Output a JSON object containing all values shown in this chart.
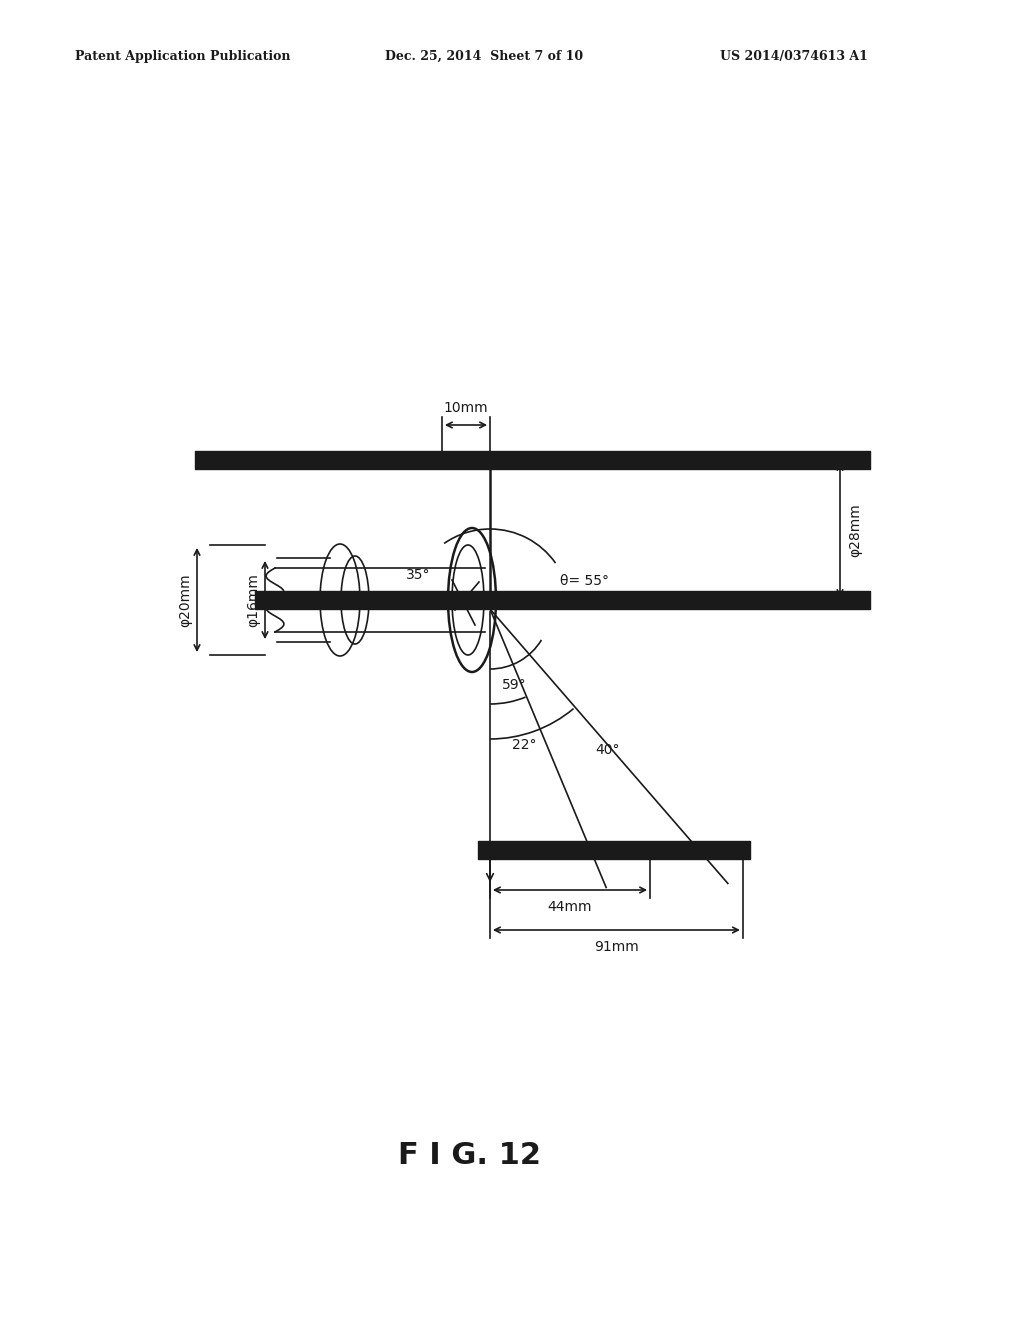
{
  "bg_color": "#ffffff",
  "line_color": "#1a1a1a",
  "header_left": "Patent Application Publication",
  "header_mid": "Dec. 25, 2014  Sheet 7 of 10",
  "header_right": "US 2014/0374613 A1",
  "fig_label": "F I G. 12",
  "label_10mm": "10mm",
  "label_16mm": "φ16mm",
  "label_20mm": "φ20mm",
  "label_28mm": "φ28mm",
  "label_35deg": "35°",
  "label_theta55": "θ= 55°",
  "label_59deg": "59°",
  "label_22deg": "22°",
  "label_40deg": "40°",
  "label_44mm": "44mm",
  "label_91mm": "91mm",
  "figsize": [
    10.24,
    13.2
  ],
  "dpi": 100
}
